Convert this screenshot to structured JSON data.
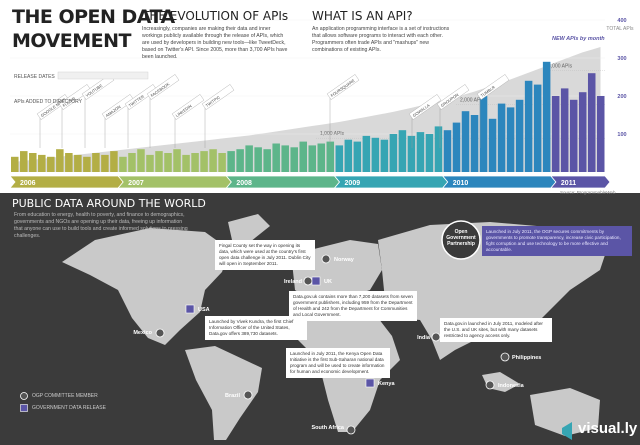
{
  "header": {
    "title_line1": "THE OPEN DATA",
    "title_line2": "MOVEMENT"
  },
  "evolution": {
    "title": "THE EVOLUTION OF APIs",
    "body": "Increasingly, companies are making their data and inner workings publicly available through the release of APIs, which are used by developers in building new tools—like TweetDeck, based on Twitter's API. Since 2005, more than 3,700 APIs have been launched."
  },
  "what_is_api": {
    "title": "WHAT IS AN API?",
    "body": "An application programming interface is a set of instructions that allows software programs to interact with each other. Programmers often trade APIs and \"mashups\" new combinations of existing APIs."
  },
  "chart_data": {
    "type": "bar",
    "release_dates_label": "RELEASE DATES",
    "apis_added_label": "APIs ADDED TO DIRECTORY",
    "source": "Source: ProgrammableWeb",
    "years": [
      "2006",
      "2007",
      "2008",
      "2009",
      "2010",
      "2011"
    ],
    "year_colors": [
      "#b3ae45",
      "#a3c168",
      "#5db58a",
      "#36a5b3",
      "#2c86bd",
      "#5b55a6"
    ],
    "api_milestones": [
      "GOOGLE MAPS",
      "FLICKR",
      "YOUTUBE",
      "AMAZON",
      "TWITTER",
      "FACEBOOK",
      "LINKEDIN",
      "TWITPIC",
      "FOURSQUARE",
      "GOWALLA",
      "GROUPON",
      "TUMBLR"
    ],
    "series": [
      {
        "name": "NEW APIs by month",
        "color": "#5b55a6",
        "values": [
          40,
          55,
          50,
          45,
          40,
          60,
          50,
          45,
          40,
          50,
          45,
          55,
          40,
          50,
          60,
          45,
          55,
          50,
          60,
          45,
          50,
          55,
          60,
          50,
          55,
          60,
          70,
          65,
          60,
          75,
          70,
          65,
          80,
          70,
          75,
          80,
          70,
          85,
          80,
          95,
          90,
          85,
          100,
          110,
          95,
          105,
          100,
          120,
          110,
          130,
          160,
          150,
          200,
          140,
          180,
          170,
          190,
          240,
          230,
          290,
          200,
          220,
          190,
          210,
          260,
          200
        ]
      },
      {
        "name": "TOTAL APIs",
        "color": "#d9d9d9",
        "axis": "y2",
        "values": [
          300,
          330,
          360,
          390,
          420,
          450,
          480,
          510,
          540,
          570,
          600,
          630,
          660,
          690,
          720,
          750,
          780,
          810,
          840,
          870,
          900,
          930,
          960,
          990,
          1020,
          1050,
          1080,
          1120,
          1160,
          1200,
          1240,
          1280,
          1320,
          1360,
          1400,
          1440,
          1480,
          1530,
          1580,
          1630,
          1680,
          1730,
          1780,
          1840,
          1900,
          1960,
          2020,
          2080,
          2150,
          2220,
          2300,
          2380,
          2470,
          2560,
          2650,
          2740,
          2840,
          2940,
          3040,
          3140,
          3240,
          3340,
          3440,
          3540,
          3620,
          3700
        ]
      }
    ],
    "ylim": [
      0,
      400
    ],
    "yticks": [
      100,
      200,
      300,
      400
    ],
    "y2lim": [
      0,
      4500
    ],
    "y2ticks": [
      {
        "value": 1000,
        "label": "1,000 APIs"
      },
      {
        "value": 2000,
        "label": "2,000 APIs"
      },
      {
        "value": 3000,
        "label": "3,000 APIs"
      }
    ]
  },
  "world": {
    "title": "PUBLIC DATA AROUND THE WORLD",
    "intro": "From education to energy, health to poverty, and finance to demographics, governments and NGOs are opening up their data, freeing up information that anyone can use to build tools and create informed solutions to pressing challenges.",
    "ogp": {
      "name": "Open Government Partnership",
      "text": "Launched in July 2011, the OGP secures commitments by governments to promote transparency, increase civic participation, fight corruption and use technology to be more effective and accountable."
    },
    "countries": [
      "USA",
      "Mexico",
      "Brazil",
      "Ireland",
      "UK",
      "Norway",
      "South Africa",
      "Kenya",
      "India",
      "Philippines",
      "Indonesia"
    ],
    "callouts": {
      "fingal": "Fingal County set the way in opening its data, which were used at the country's first open data challenge in July 2011. Dublin City will open in September 2011.",
      "uk": "Data.gov.uk contains more than 7,200 datasets from seven government publishers, including 959 from the Department of Health and 242 from the Department for Communities and Local Government.",
      "usa": "Launched by Vivek Kundra, the first Chief Information Officer of the United States, Data.gov offers 389,730 datasets.",
      "kenya": "Launched in July 2011, the Kenya Open Data Initiative is the first Sub-Saharan national data program and will be used to create information for human and economic development.",
      "india": "Data.gov.in launched in July 2011, modeled after the U.S. and UK sites, but with many datasets restricted to agency access only."
    },
    "legend": {
      "ogp_member": "OGP COMMITTEE MEMBER",
      "data_release": "GOVERNMENT DATA RELEASE"
    }
  },
  "footer": {
    "brand": "visual.ly"
  }
}
